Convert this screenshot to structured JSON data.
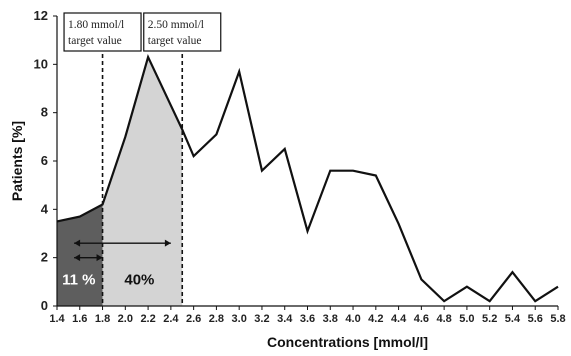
{
  "chart_data": {
    "type": "area",
    "xlabel": "Concentrations [mmol/l]",
    "ylabel": "Patients [%]",
    "xlim": [
      1.4,
      5.8
    ],
    "ylim": [
      0,
      12
    ],
    "x_ticks": [
      "1.4",
      "1.6",
      "1.8",
      "2.0",
      "2.2",
      "2.4",
      "2.6",
      "2.8",
      "3.0",
      "3.2",
      "3.4",
      "3.6",
      "3.8",
      "4.0",
      "4.2",
      "4.4",
      "4.6",
      "4.8",
      "5.0",
      "5.2",
      "5.4",
      "5.6",
      "5.8"
    ],
    "y_ticks": [
      "0",
      "2",
      "4",
      "6",
      "8",
      "10",
      "12"
    ],
    "series": [
      {
        "x": [
          1.4,
          1.6,
          1.8,
          2.0,
          2.2,
          2.4,
          2.5,
          2.6,
          2.8,
          3.0,
          3.2,
          3.4,
          3.6,
          3.8,
          4.0,
          4.2,
          4.4,
          4.6,
          4.8,
          5.0,
          5.2,
          5.4,
          5.6,
          5.8
        ],
        "y": [
          3.5,
          3.7,
          4.2,
          7.0,
          10.3,
          8.3,
          7.3,
          6.2,
          7.1,
          9.7,
          5.6,
          6.5,
          3.1,
          5.6,
          5.6,
          5.4,
          3.4,
          1.1,
          0.2,
          0.8,
          0.2,
          1.4,
          0.2,
          0.8
        ]
      }
    ],
    "shaded_regions": [
      {
        "from": 1.4,
        "to": 1.8,
        "color": "#5e5e5e",
        "label": "11 %"
      },
      {
        "from": 1.8,
        "to": 2.5,
        "color": "#d4d4d4",
        "label": "40%"
      }
    ],
    "target_lines": [
      {
        "x": 1.8,
        "line1": "1.80 mmol/l",
        "line2": "target value"
      },
      {
        "x": 2.5,
        "line1": "2.50 mmol/l",
        "line2": "target value"
      }
    ],
    "arrows": [
      {
        "from": 1.55,
        "to": 1.8,
        "y": 2.0
      },
      {
        "from": 1.55,
        "to": 2.4,
        "y": 2.6
      }
    ]
  }
}
